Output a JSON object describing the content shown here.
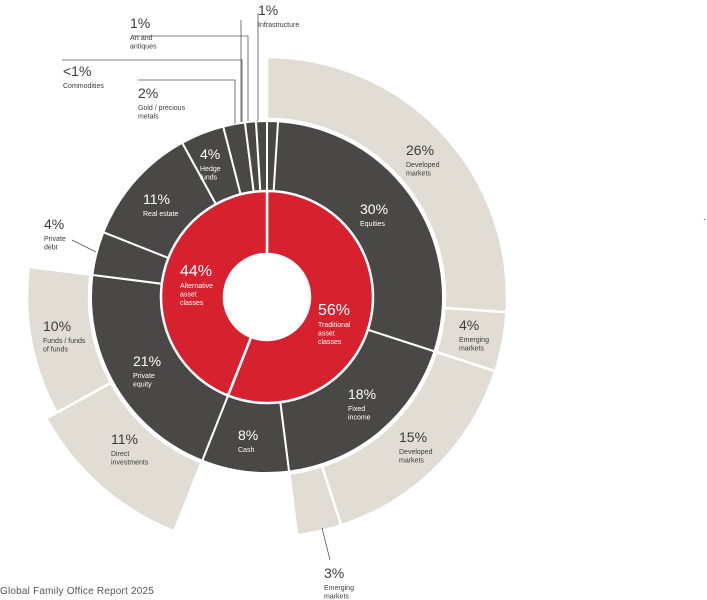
{
  "footer": "Global Family Office Report 2025",
  "colors": {
    "red": "#d7212f",
    "dark": "#4a4846",
    "beige": "#e1ddd4",
    "leader": "#555555",
    "text_dark": "#3b3b3b"
  },
  "chart_data": {
    "type": "sunburst",
    "title": "",
    "inner_ring": [
      {
        "pct": "56%",
        "label": "Traditional asset classes",
        "lines": [
          "Traditional",
          "asset",
          "classes"
        ],
        "value": 56
      },
      {
        "pct": "44%",
        "label": "Alternative asset classes",
        "lines": [
          "Alternative",
          "asset",
          "classes"
        ],
        "value": 44
      }
    ],
    "middle_ring": [
      {
        "pct": "30%",
        "lines": [
          "Equities"
        ],
        "value": 30,
        "parent": "Traditional asset classes"
      },
      {
        "pct": "18%",
        "lines": [
          "Fixed",
          "income"
        ],
        "value": 18,
        "parent": "Traditional asset classes"
      },
      {
        "pct": "8%",
        "lines": [
          "Cash"
        ],
        "value": 8,
        "parent": "Traditional asset classes"
      },
      {
        "pct": "21%",
        "lines": [
          "Private",
          "equity"
        ],
        "value": 21,
        "parent": "Alternative asset classes"
      },
      {
        "pct": "4%",
        "lines": [
          "Private",
          "debt"
        ],
        "value": 4,
        "parent": "Alternative asset classes"
      },
      {
        "pct": "11%",
        "lines": [
          "Real estate"
        ],
        "value": 11,
        "parent": "Alternative asset classes"
      },
      {
        "pct": "4%",
        "lines": [
          "Hedge",
          "funds"
        ],
        "value": 4,
        "parent": "Alternative asset classes"
      },
      {
        "pct": "2%",
        "lines": [
          "Gold / precious",
          "metals"
        ],
        "value": 2,
        "parent": "Alternative asset classes"
      },
      {
        "pct": "<1%",
        "lines": [
          "Commodities"
        ],
        "value": 1,
        "parent": "Alternative asset classes"
      },
      {
        "pct": "1%",
        "lines": [
          "Art and",
          "antiques"
        ],
        "value": 1,
        "parent": "Alternative asset classes"
      },
      {
        "pct": "1%",
        "lines": [
          "Infrastructure"
        ],
        "value": 1,
        "parent": "Alternative asset classes"
      }
    ],
    "outer_ring": [
      {
        "pct": "26%",
        "lines": [
          "Developed",
          "markets"
        ],
        "value": 26,
        "parent": "Equities"
      },
      {
        "pct": "4%",
        "lines": [
          "Emerging",
          "markets"
        ],
        "value": 4,
        "parent": "Equities"
      },
      {
        "pct": "15%",
        "lines": [
          "Developed",
          "markets"
        ],
        "value": 15,
        "parent": "Fixed income"
      },
      {
        "pct": "3%",
        "lines": [
          "Emerging",
          "markets"
        ],
        "value": 3,
        "parent": "Fixed income"
      },
      {
        "pct": "11%",
        "lines": [
          "Direct",
          "investments"
        ],
        "value": 11,
        "parent": "Private equity"
      },
      {
        "pct": "10%",
        "lines": [
          "Funds / funds",
          "of funds"
        ],
        "value": 10,
        "parent": "Private equity"
      }
    ]
  }
}
